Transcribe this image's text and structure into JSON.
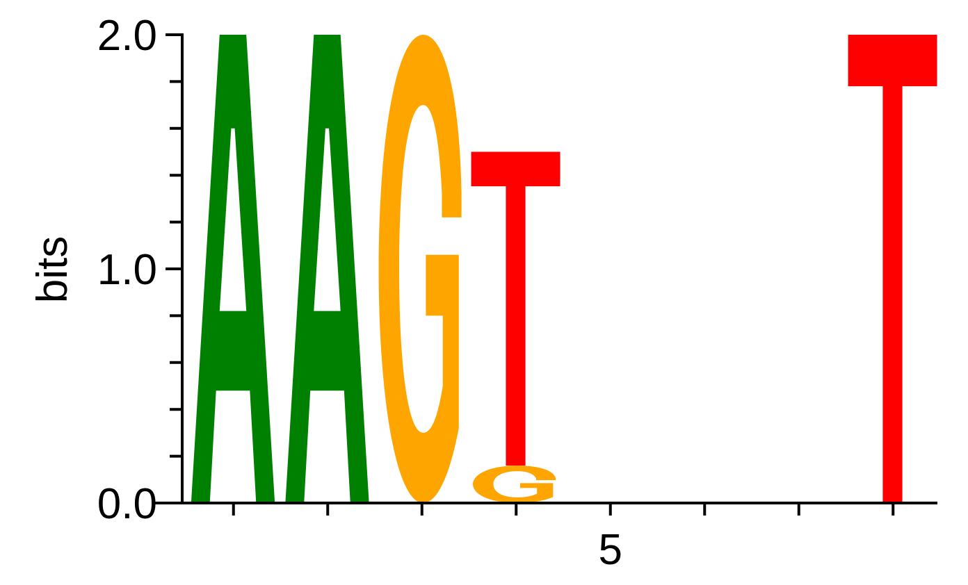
{
  "chart_data": {
    "type": "sequence-logo",
    "ylabel": "bits",
    "ylim": [
      0,
      2.0
    ],
    "y_ticks": [
      "0.0",
      "1.0",
      "2.0"
    ],
    "y_minor_step": 0.2,
    "x_ticks_labeled": [
      {
        "position": 5,
        "label": "5"
      }
    ],
    "positions": [
      1,
      2,
      3,
      4,
      5,
      6,
      7,
      8
    ],
    "columns": [
      {
        "position": 1,
        "letters": [
          {
            "letter": "A",
            "bits": 2.0
          }
        ]
      },
      {
        "position": 2,
        "letters": [
          {
            "letter": "A",
            "bits": 2.0
          }
        ]
      },
      {
        "position": 3,
        "letters": [
          {
            "letter": "G",
            "bits": 2.0
          }
        ]
      },
      {
        "position": 4,
        "letters": [
          {
            "letter": "G",
            "bits": 0.16
          },
          {
            "letter": "T",
            "bits": 1.34
          }
        ]
      },
      {
        "position": 5,
        "letters": []
      },
      {
        "position": 6,
        "letters": []
      },
      {
        "position": 7,
        "letters": []
      },
      {
        "position": 8,
        "letters": [
          {
            "letter": "T",
            "bits": 2.0
          }
        ]
      }
    ],
    "colors": {
      "A": "#008000",
      "G": "#ffa500",
      "T": "#ff0000",
      "axis": "#000000"
    }
  }
}
